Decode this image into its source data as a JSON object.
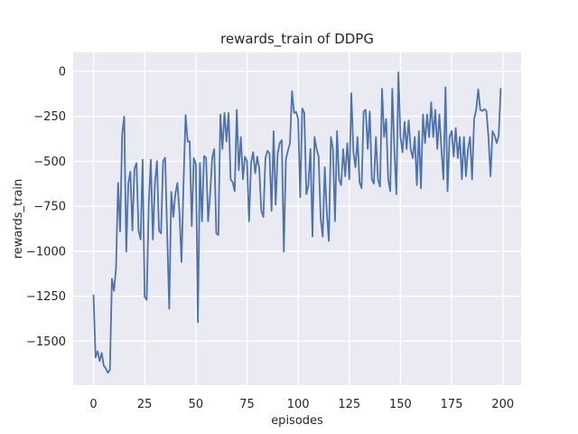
{
  "figure": {
    "background": "#ffffff"
  },
  "chart_data": {
    "type": "line",
    "title": "rewards_train of DDPG",
    "xlabel": "episodes",
    "ylabel": "rewards_train",
    "x_start": 0,
    "x_step": 1,
    "values": [
      -1245,
      -1590,
      -1555,
      -1610,
      -1565,
      -1635,
      -1650,
      -1675,
      -1660,
      -1153,
      -1220,
      -1094,
      -620,
      -890,
      -348,
      -251,
      -1002,
      -625,
      -558,
      -884,
      -541,
      -510,
      -884,
      -935,
      -491,
      -1253,
      -1270,
      -734,
      -491,
      -935,
      -625,
      -499,
      -884,
      -901,
      -499,
      -480,
      -900,
      -1320,
      -670,
      -810,
      -680,
      -620,
      -784,
      -1060,
      -616,
      -243,
      -390,
      -390,
      -860,
      -482,
      -515,
      -1395,
      -508,
      -834,
      -470,
      -480,
      -834,
      -683,
      -480,
      -432,
      -901,
      -910,
      -240,
      -432,
      -231,
      -390,
      -231,
      -600,
      -616,
      -666,
      -214,
      -550,
      -365,
      -600,
      -474,
      -499,
      -834,
      -508,
      -449,
      -566,
      -474,
      -541,
      -776,
      -809,
      -482,
      -441,
      -457,
      -776,
      -332,
      -742,
      -457,
      -399,
      -382,
      -1002,
      -491,
      -441,
      -399,
      -110,
      -231,
      -225,
      -265,
      -700,
      -206,
      -231,
      -683,
      -633,
      -432,
      -918,
      -365,
      -432,
      -474,
      -817,
      -918,
      -533,
      -784,
      -943,
      -365,
      -432,
      -833,
      -332,
      -600,
      -633,
      -432,
      -583,
      -399,
      -600,
      -122,
      -449,
      -533,
      -365,
      -616,
      -650,
      -223,
      -214,
      -432,
      -223,
      -600,
      -624,
      -365,
      -600,
      -641,
      -97,
      -365,
      -265,
      -600,
      -666,
      -97,
      -432,
      -683,
      -5,
      -365,
      -449,
      -281,
      -432,
      -273,
      -432,
      -482,
      -365,
      -633,
      -332,
      -650,
      -239,
      -399,
      -239,
      -365,
      -172,
      -365,
      -214,
      -432,
      -239,
      -432,
      -600,
      -89,
      -666,
      -365,
      -332,
      -474,
      -315,
      -482,
      -365,
      -600,
      -365,
      -583,
      -432,
      -365,
      -600,
      -265,
      -214,
      -100,
      -214,
      -220,
      -210,
      -220,
      -365,
      -583,
      -332,
      -357,
      -399,
      -357,
      -97
    ],
    "xlim": [
      -9.95,
      208.95
    ],
    "ylim": [
      -1744,
      105
    ],
    "xticks": [
      {
        "v": 0,
        "label": "0"
      },
      {
        "v": 25,
        "label": "25"
      },
      {
        "v": 50,
        "label": "50"
      },
      {
        "v": 75,
        "label": "75"
      },
      {
        "v": 100,
        "label": "100"
      },
      {
        "v": 125,
        "label": "125"
      },
      {
        "v": 150,
        "label": "150"
      },
      {
        "v": 175,
        "label": "175"
      },
      {
        "v": 200,
        "label": "200"
      }
    ],
    "yticks": [
      {
        "v": 0,
        "label": "0"
      },
      {
        "v": -250,
        "label": "−250"
      },
      {
        "v": -500,
        "label": "−500"
      },
      {
        "v": -750,
        "label": "−750"
      },
      {
        "v": -1000,
        "label": "−1000"
      },
      {
        "v": -1250,
        "label": "−1250"
      },
      {
        "v": -1500,
        "label": "−1500"
      }
    ],
    "grid": true,
    "legend": null,
    "colors": {
      "line": "#4C72B0",
      "plot_bg": "#EAEAF2",
      "grid": "#FFFFFF",
      "text": "#262626",
      "figure_bg": "#FFFFFF"
    }
  }
}
